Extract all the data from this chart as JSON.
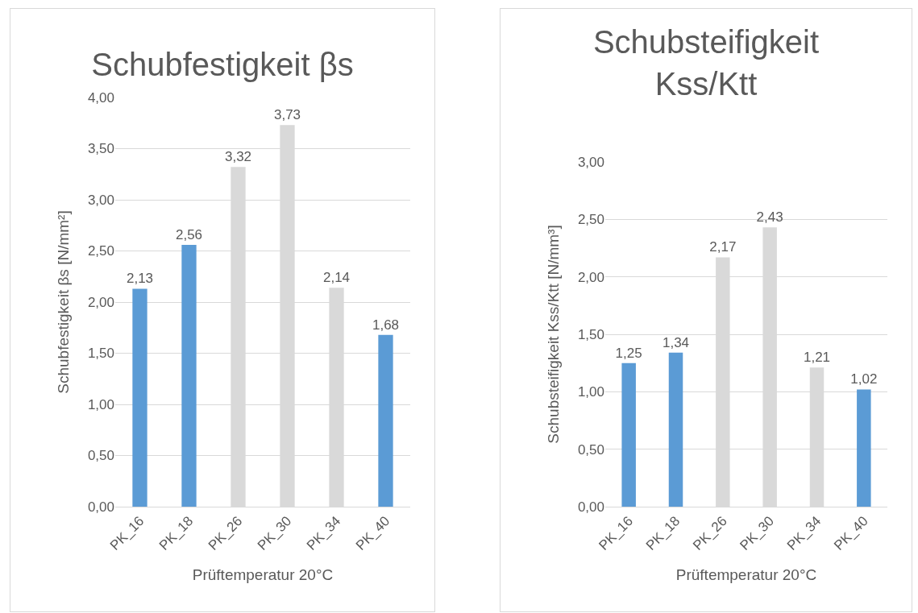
{
  "chart_data": [
    {
      "type": "bar",
      "title": "Schubfestigkeit βs",
      "xlabel": "Prüftemperatur 20°C",
      "ylabel": "Schubfestigkeit βs [N/mm²]",
      "categories": [
        "PK_16",
        "PK_18",
        "PK_26",
        "PK_30",
        "PK_34",
        "PK_40"
      ],
      "values": [
        2.13,
        2.56,
        3.32,
        3.73,
        2.14,
        1.68
      ],
      "value_labels": [
        "2,13",
        "2,56",
        "3,32",
        "3,73",
        "2,14",
        "1,68"
      ],
      "colors": [
        "#5b9bd5",
        "#5b9bd5",
        "#d9d9d9",
        "#d9d9d9",
        "#d9d9d9",
        "#5b9bd5"
      ],
      "ylim": [
        0,
        4
      ],
      "yticks": [
        {
          "value": 0,
          "label": "0,00"
        },
        {
          "value": 0.5,
          "label": "0,50"
        },
        {
          "value": 1,
          "label": "1,00"
        },
        {
          "value": 1.5,
          "label": "1,50"
        },
        {
          "value": 2,
          "label": "2,00"
        },
        {
          "value": 2.5,
          "label": "2,50"
        },
        {
          "value": 3,
          "label": "3,00"
        },
        {
          "value": 3.5,
          "label": "3,50"
        },
        {
          "value": 4,
          "label": "4,00"
        }
      ],
      "grid": "y"
    },
    {
      "type": "bar",
      "title": "Schubsteifigkeit\nKss/Ktt",
      "xlabel": "Prüftemperatur 20°C",
      "ylabel": "Schubsteifigkeit Kss/Ktt [N/mm³]",
      "categories": [
        "PK_16",
        "PK_18",
        "PK_26",
        "PK_30",
        "PK_34",
        "PK_40"
      ],
      "values": [
        1.25,
        1.34,
        2.17,
        2.43,
        1.21,
        1.02
      ],
      "value_labels": [
        "1,25",
        "1,34",
        "2,17",
        "2,43",
        "1,21",
        "1,02"
      ],
      "colors": [
        "#5b9bd5",
        "#5b9bd5",
        "#d9d9d9",
        "#d9d9d9",
        "#d9d9d9",
        "#5b9bd5"
      ],
      "ylim": [
        0,
        3
      ],
      "yticks": [
        {
          "value": 0,
          "label": "0,00"
        },
        {
          "value": 0.5,
          "label": "0,50"
        },
        {
          "value": 1,
          "label": "1,00"
        },
        {
          "value": 1.5,
          "label": "1,50"
        },
        {
          "value": 2,
          "label": "2,00"
        },
        {
          "value": 2.5,
          "label": "2,50"
        },
        {
          "value": 3,
          "label": "3,00"
        }
      ],
      "grid": "y"
    }
  ]
}
